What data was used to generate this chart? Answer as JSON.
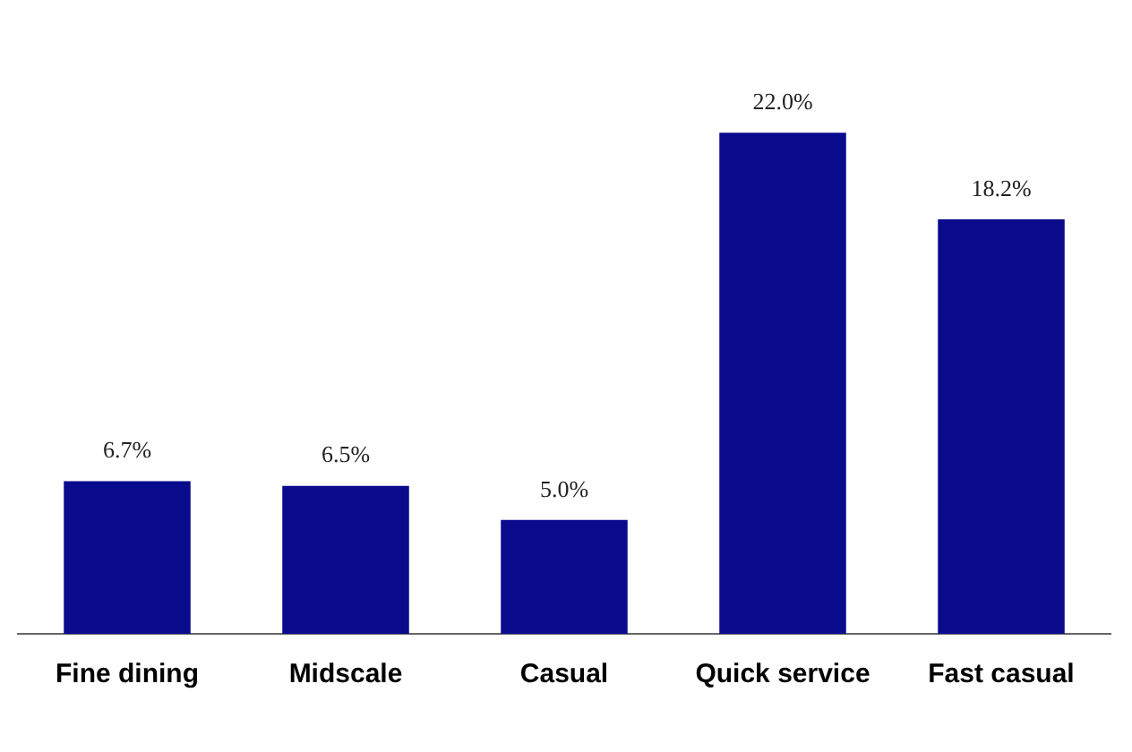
{
  "chart_data": {
    "type": "bar",
    "categories": [
      "Fine dining",
      "Midscale",
      "Casual",
      "Quick service",
      "Fast casual"
    ],
    "values": [
      6.7,
      6.5,
      5.0,
      22.0,
      18.2
    ],
    "value_labels": [
      "6.7%",
      "6.5%",
      "5.0%",
      "22.0%",
      "18.2%"
    ],
    "color": "#0b0b8e",
    "grid": false,
    "legend": false
  }
}
